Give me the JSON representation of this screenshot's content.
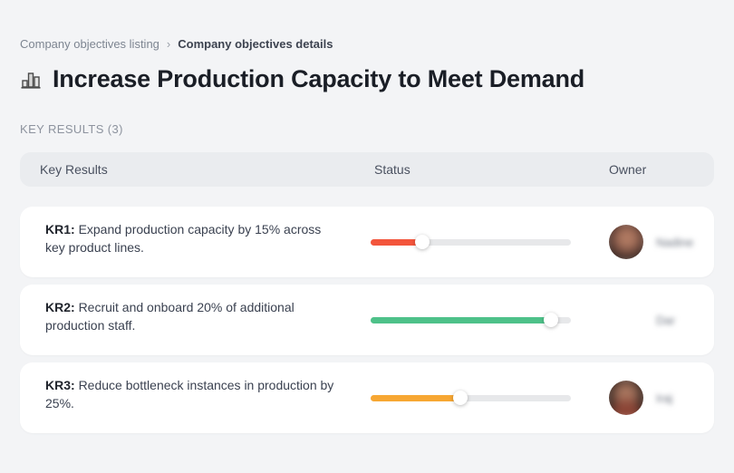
{
  "breadcrumb": {
    "separator": "›",
    "items": [
      {
        "label": "Company objectives listing"
      },
      {
        "label": "Company objectives details"
      }
    ]
  },
  "header": {
    "icon": "bar-chart-icon",
    "title": "Increase Production Capacity to Meet Demand"
  },
  "section": {
    "label": "KEY RESULTS (3)"
  },
  "table": {
    "columns": {
      "key_results": "Key Results",
      "status": "Status",
      "owner": "Owner"
    },
    "rows": [
      {
        "kr_label": "KR1:",
        "description": "Expand production capacity by 15% across key product lines.",
        "progress_percent": 26,
        "progress_color": "#F3553C",
        "owner_name": "Nadine"
      },
      {
        "kr_label": "KR2:",
        "description": "Recruit and onboard 20% of additional production staff.",
        "progress_percent": 90,
        "progress_color": "#4EC189",
        "owner_name": "Dar"
      },
      {
        "kr_label": "KR3:",
        "description": "Reduce bottleneck instances in production by 25%.",
        "progress_percent": 45,
        "progress_color": "#F7A733",
        "owner_name": "Iraj"
      }
    ]
  },
  "colors": {
    "page_background": "#F3F4F6",
    "table_header_background": "#EAECEF",
    "card_background": "#FFFFFF",
    "progress_track": "#E7E8EA"
  }
}
